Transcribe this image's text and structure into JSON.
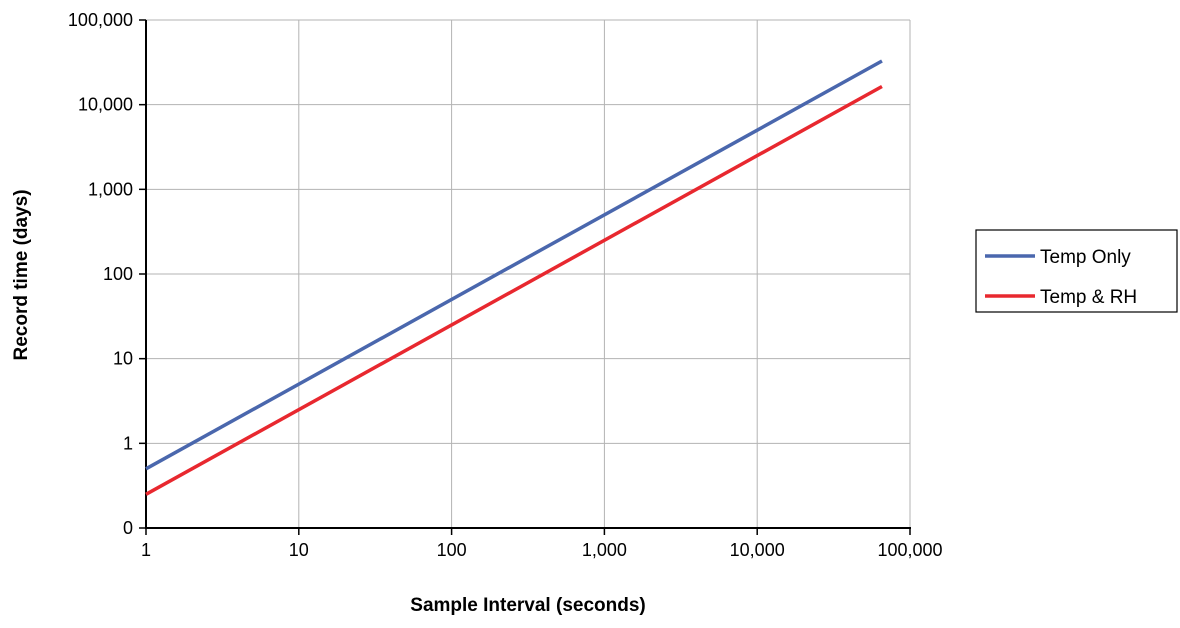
{
  "chart_data": {
    "type": "line",
    "title": "",
    "xlabel": "Sample Interval (seconds)",
    "ylabel": "Record time (days)",
    "x_scale": "log",
    "y_scale": "log",
    "xlim": [
      1,
      100000
    ],
    "ylim": [
      0.1,
      100000
    ],
    "x_ticks": [
      1,
      10,
      100,
      1000,
      10000,
      100000
    ],
    "x_tick_labels": [
      "1",
      "10",
      "100",
      "1,000",
      "10,000",
      "100,000"
    ],
    "y_ticks": [
      0.1,
      1,
      10,
      100,
      1000,
      10000,
      100000
    ],
    "y_tick_labels": [
      "0",
      "1",
      "10",
      "100",
      "1,000",
      "10,000",
      "100,000"
    ],
    "grid": true,
    "legend_position": "right",
    "series": [
      {
        "name": "Temp Only",
        "color": "#4a67ad",
        "x": [
          1,
          65535
        ],
        "y": [
          0.5,
          32768
        ]
      },
      {
        "name": "Temp & RH",
        "color": "#e8282f",
        "x": [
          1,
          65535
        ],
        "y": [
          0.25,
          16384
        ]
      }
    ]
  }
}
